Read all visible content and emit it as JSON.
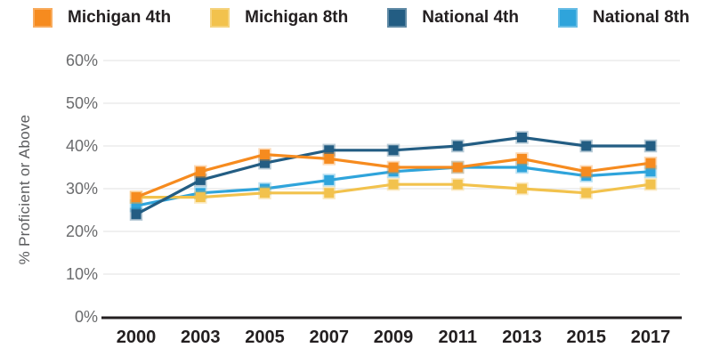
{
  "chart_data": {
    "type": "line",
    "title": "",
    "ylabel": "% Proficient or Above",
    "xlabel": "",
    "x_labels": [
      "2000",
      "2003",
      "2005",
      "2007",
      "2009",
      "2011",
      "2013",
      "2015",
      "2017"
    ],
    "yticks": [
      "0%",
      "10%",
      "20%",
      "30%",
      "40%",
      "50%",
      "60%"
    ],
    "ylim": [
      0,
      60
    ],
    "ytick_step": 10,
    "grid": true,
    "legend_position": "top",
    "series": [
      {
        "name": "Michigan 4th",
        "color": "#F68B1F",
        "values": [
          28,
          34,
          38,
          37,
          35,
          35,
          37,
          34,
          36
        ]
      },
      {
        "name": "Michigan 8th",
        "color": "#F2C24D",
        "values": [
          28,
          28,
          29,
          29,
          31,
          31,
          30,
          29,
          31
        ]
      },
      {
        "name": "National 4th",
        "color": "#235D83",
        "values": [
          24,
          32,
          36,
          39,
          39,
          40,
          42,
          40,
          40
        ]
      },
      {
        "name": "National 8th",
        "color": "#2FA4DB",
        "values": [
          26,
          29,
          30,
          32,
          34,
          35,
          35,
          33,
          34
        ]
      }
    ],
    "draw_order": [
      "National 8th",
      "Michigan 8th",
      "National 4th",
      "Michigan 4th"
    ]
  },
  "styles": {
    "grid_color": "#E6E7E8",
    "axis_color": "#231F20",
    "background": "#FFFFFF"
  }
}
